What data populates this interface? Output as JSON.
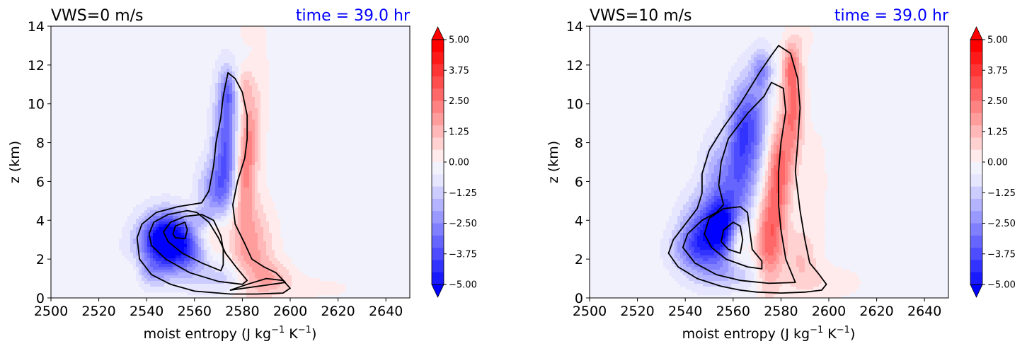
{
  "colors": {
    "background": "#f2f2fc",
    "time_text": "#0000ff",
    "contour": "#000000",
    "neg_strong": "#0000ff",
    "pos_strong": "#ff0000"
  },
  "chart_data": [
    {
      "type": "contourf",
      "title_left": "VWS=0 m/s",
      "title_right": "time = 39.0 hr",
      "xlabel": "moist entropy (J kg",
      "xlabel_sup1": "−1",
      "xlabel_mid": " K",
      "xlabel_sup2": "−1",
      "xlabel_end": ")",
      "ylabel": "z (km)",
      "xlim": [
        2500,
        2650
      ],
      "ylim": [
        0,
        14
      ],
      "xticks": [
        "2500",
        "2520",
        "2540",
        "2560",
        "2580",
        "2600",
        "2620",
        "2640"
      ],
      "xtick_values": [
        2500,
        2520,
        2540,
        2560,
        2580,
        2600,
        2620,
        2640
      ],
      "yticks": [
        "0",
        "2",
        "4",
        "6",
        "8",
        "10",
        "12",
        "14"
      ],
      "ytick_values": [
        0,
        2,
        4,
        6,
        8,
        10,
        12,
        14
      ],
      "colorbar": {
        "range": [
          -5,
          5
        ],
        "extend": "both",
        "ticks": [
          "5.00",
          "3.75",
          "2.50",
          "1.25",
          "0.00",
          "−1.25",
          "−2.50",
          "−3.75",
          "−5.00"
        ],
        "tick_values": [
          5,
          3.75,
          2.5,
          1.25,
          0,
          -1.25,
          -2.5,
          -3.75,
          -5
        ]
      },
      "blobs": [
        {
          "x": 2548,
          "y": 3.1,
          "sx": 7,
          "sy": 0.9,
          "v": -5.2
        },
        {
          "x": 2558,
          "y": 2.4,
          "sx": 12,
          "sy": 0.9,
          "v": -2.8
        },
        {
          "x": 2576,
          "y": 1.0,
          "sx": 10,
          "sy": 0.6,
          "v": -1.5
        },
        {
          "x": 2568,
          "y": 5.2,
          "sx": 4.5,
          "sy": 1.2,
          "v": -2.5
        },
        {
          "x": 2573,
          "y": 7.8,
          "sx": 3.5,
          "sy": 2.2,
          "v": -3.2
        },
        {
          "x": 2574,
          "y": 10.6,
          "sx": 2.2,
          "sy": 0.8,
          "v": -1.8
        },
        {
          "x": 2542,
          "y": 1.3,
          "sx": 5,
          "sy": 0.5,
          "v": -1.2
        },
        {
          "x": 2564,
          "y": 4.1,
          "sx": 3,
          "sy": 0.4,
          "v": -1.5
        },
        {
          "x": 2567,
          "y": 3.1,
          "sx": 5,
          "sy": 1.2,
          "v": 2.6
        },
        {
          "x": 2582,
          "y": 2.4,
          "sx": 7,
          "sy": 1.7,
          "v": 2.4
        },
        {
          "x": 2591,
          "y": 1.0,
          "sx": 7,
          "sy": 0.6,
          "v": 1.6
        },
        {
          "x": 2581,
          "y": 6.3,
          "sx": 3,
          "sy": 1.5,
          "v": 2.0
        },
        {
          "x": 2583,
          "y": 8.8,
          "sx": 2.8,
          "sy": 1.6,
          "v": 1.8
        },
        {
          "x": 2581,
          "y": 11.0,
          "sx": 2,
          "sy": 0.6,
          "v": 1.0
        },
        {
          "x": 2588,
          "y": 11.0,
          "sx": 2.5,
          "sy": 3.0,
          "v": 0.45
        },
        {
          "x": 2612,
          "y": 0.5,
          "sx": 14,
          "sy": 0.5,
          "v": 0.35
        },
        {
          "x": 2534,
          "y": 1.3,
          "sx": 3,
          "sy": 0.5,
          "v": 0.7
        },
        {
          "x": 2581,
          "y": 13.7,
          "sx": 3,
          "sy": 0.7,
          "v": 0.3
        }
      ],
      "contours": [
        [
          [
            2575,
            0.4
          ],
          [
            2582,
            0.7
          ],
          [
            2590,
            1.0
          ],
          [
            2597,
            0.9
          ],
          [
            2600,
            0.5
          ],
          [
            2597,
            0.25
          ],
          [
            2586,
            0.2
          ],
          [
            2575,
            0.2
          ],
          [
            2560,
            0.35
          ],
          [
            2550,
            0.7
          ],
          [
            2542,
            1.2
          ],
          [
            2537,
            2.0
          ],
          [
            2536,
            3.1
          ],
          [
            2538,
            3.8
          ],
          [
            2544,
            4.4
          ],
          [
            2553,
            4.7
          ],
          [
            2563,
            4.9
          ],
          [
            2566,
            5.5
          ],
          [
            2568,
            6.8
          ],
          [
            2569,
            8.0
          ],
          [
            2571,
            9.3
          ],
          [
            2572,
            10.4
          ],
          [
            2574,
            11.6
          ],
          [
            2577,
            11.3
          ],
          [
            2580,
            10.6
          ],
          [
            2582,
            9.4
          ],
          [
            2582,
            8.2
          ],
          [
            2581,
            7.2
          ],
          [
            2578,
            6.0
          ],
          [
            2576,
            4.8
          ],
          [
            2577,
            3.8
          ],
          [
            2581,
            2.8
          ],
          [
            2584,
            2.0
          ],
          [
            2589,
            1.6
          ],
          [
            2594,
            1.3
          ],
          [
            2598,
            0.8
          ]
        ],
        [
          [
            2580,
            0.7
          ],
          [
            2570,
            0.85
          ],
          [
            2558,
            1.3
          ],
          [
            2548,
            2.0
          ],
          [
            2542,
            2.7
          ],
          [
            2541,
            3.3
          ],
          [
            2543,
            3.9
          ],
          [
            2549,
            4.3
          ],
          [
            2557,
            4.5
          ],
          [
            2561,
            4.4
          ],
          [
            2566,
            3.9
          ],
          [
            2570,
            3.1
          ],
          [
            2573,
            2.3
          ],
          [
            2578,
            1.5
          ],
          [
            2582,
            0.9
          ]
        ],
        [
          [
            2571,
            1.4
          ],
          [
            2563,
            1.8
          ],
          [
            2555,
            2.3
          ],
          [
            2549,
            2.9
          ],
          [
            2547,
            3.4
          ],
          [
            2550,
            3.9
          ],
          [
            2556,
            4.2
          ],
          [
            2563,
            4.3
          ],
          [
            2568,
            4.0
          ],
          [
            2571,
            3.2
          ],
          [
            2572,
            2.5
          ],
          [
            2572,
            1.7
          ]
        ],
        [
          [
            2552,
            3.1
          ],
          [
            2556,
            3.05
          ],
          [
            2557,
            3.5
          ],
          [
            2556,
            3.9
          ],
          [
            2552,
            3.7
          ],
          [
            2551,
            3.3
          ]
        ]
      ]
    },
    {
      "type": "contourf",
      "title_left": "VWS=10 m/s",
      "title_right": "time = 39.0 hr",
      "xlabel": "moist entropy (J kg",
      "xlabel_sup1": "−1",
      "xlabel_mid": " K",
      "xlabel_sup2": "−1",
      "xlabel_end": ")",
      "ylabel": "z (km)",
      "xlim": [
        2500,
        2650
      ],
      "ylim": [
        0,
        14
      ],
      "xticks": [
        "2500",
        "2520",
        "2540",
        "2560",
        "2580",
        "2600",
        "2620",
        "2640"
      ],
      "xtick_values": [
        2500,
        2520,
        2540,
        2560,
        2580,
        2600,
        2620,
        2640
      ],
      "yticks": [
        "0",
        "2",
        "4",
        "6",
        "8",
        "10",
        "12",
        "14"
      ],
      "ytick_values": [
        0,
        2,
        4,
        6,
        8,
        10,
        12,
        14
      ],
      "colorbar": {
        "range": [
          -5,
          5
        ],
        "extend": "both",
        "ticks": [
          "5.00",
          "3.75",
          "2.50",
          "1.25",
          "0.00",
          "−1.25",
          "−2.50",
          "−3.75",
          "−5.00"
        ],
        "tick_values": [
          5,
          3.75,
          2.5,
          1.25,
          0,
          -1.25,
          -2.5,
          -3.75,
          -5
        ]
      },
      "blobs": [
        {
          "x": 2550,
          "y": 3.3,
          "sx": 7,
          "sy": 1.3,
          "v": -4.0
        },
        {
          "x": 2556,
          "y": 3.8,
          "sx": 4,
          "sy": 1.0,
          "v": -2.5
        },
        {
          "x": 2562,
          "y": 6.0,
          "sx": 6,
          "sy": 1.7,
          "v": -2.5
        },
        {
          "x": 2567,
          "y": 9.0,
          "sx": 5,
          "sy": 1.6,
          "v": -3.0
        },
        {
          "x": 2572,
          "y": 11.7,
          "sx": 3,
          "sy": 0.8,
          "v": -2.0
        },
        {
          "x": 2542,
          "y": 2.5,
          "sx": 6,
          "sy": 0.8,
          "v": -1.6
        },
        {
          "x": 2560,
          "y": 1.2,
          "sx": 9,
          "sy": 0.5,
          "v": -1.0
        },
        {
          "x": 2552,
          "y": 6.5,
          "sx": 4,
          "sy": 1.3,
          "v": -1.0
        },
        {
          "x": 2562,
          "y": 8.5,
          "sx": 3,
          "sy": 1.5,
          "v": -0.9
        },
        {
          "x": 2562,
          "y": 3.0,
          "sx": 3,
          "sy": 0.9,
          "v": 1.6
        },
        {
          "x": 2575,
          "y": 3.0,
          "sx": 4,
          "sy": 1.8,
          "v": 3.0
        },
        {
          "x": 2579,
          "y": 6.5,
          "sx": 3.5,
          "sy": 1.8,
          "v": 3.0
        },
        {
          "x": 2585,
          "y": 9.8,
          "sx": 3,
          "sy": 2.0,
          "v": 2.8
        },
        {
          "x": 2584,
          "y": 12.0,
          "sx": 2.5,
          "sy": 0.8,
          "v": 1.5
        },
        {
          "x": 2588,
          "y": 2.0,
          "sx": 5,
          "sy": 1.2,
          "v": 1.2
        },
        {
          "x": 2600,
          "y": 0.8,
          "sx": 10,
          "sy": 0.6,
          "v": 0.6
        },
        {
          "x": 2595,
          "y": 6.0,
          "sx": 4,
          "sy": 2.5,
          "v": 0.4
        },
        {
          "x": 2590,
          "y": 13.5,
          "sx": 3,
          "sy": 0.7,
          "v": 0.4
        }
      ],
      "contours": [
        [
          [
            2570,
            0.3
          ],
          [
            2580,
            0.25
          ],
          [
            2590,
            0.3
          ],
          [
            2597,
            0.4
          ],
          [
            2599,
            0.7
          ],
          [
            2596,
            1.2
          ],
          [
            2592,
            1.8
          ],
          [
            2590,
            3.0
          ],
          [
            2588,
            4.5
          ],
          [
            2586,
            6.5
          ],
          [
            2587,
            8.0
          ],
          [
            2588,
            9.8
          ],
          [
            2587,
            11.3
          ],
          [
            2584,
            12.6
          ],
          [
            2579,
            13.0
          ],
          [
            2576,
            12.5
          ],
          [
            2571,
            11.6
          ],
          [
            2563,
            10.0
          ],
          [
            2556,
            8.8
          ],
          [
            2550,
            7.6
          ],
          [
            2547,
            6.4
          ],
          [
            2547,
            5.4
          ],
          [
            2545,
            4.6
          ],
          [
            2540,
            3.8
          ],
          [
            2535,
            3.0
          ],
          [
            2533,
            2.3
          ],
          [
            2537,
            1.6
          ],
          [
            2545,
            1.0
          ],
          [
            2555,
            0.6
          ],
          [
            2563,
            0.4
          ]
        ],
        [
          [
            2586,
            0.8
          ],
          [
            2582,
            2.0
          ],
          [
            2580,
            3.5
          ],
          [
            2579,
            4.8
          ],
          [
            2579,
            6.5
          ],
          [
            2580,
            8.0
          ],
          [
            2582,
            9.6
          ],
          [
            2581,
            10.8
          ],
          [
            2576,
            11.1
          ],
          [
            2573,
            10.4
          ],
          [
            2566,
            9.5
          ],
          [
            2558,
            8.2
          ],
          [
            2555,
            7.0
          ],
          [
            2554,
            5.8
          ],
          [
            2556,
            4.8
          ],
          [
            2553,
            4.4
          ],
          [
            2547,
            4.0
          ],
          [
            2541,
            3.3
          ],
          [
            2539,
            2.6
          ],
          [
            2544,
            1.8
          ],
          [
            2553,
            1.2
          ],
          [
            2563,
            0.9
          ],
          [
            2575,
            0.75
          ]
        ],
        [
          [
            2572,
            1.5
          ],
          [
            2566,
            1.6
          ],
          [
            2557,
            2.0
          ],
          [
            2551,
            2.6
          ],
          [
            2548,
            3.3
          ],
          [
            2550,
            4.1
          ],
          [
            2556,
            4.6
          ],
          [
            2563,
            4.7
          ],
          [
            2566,
            4.4
          ],
          [
            2567,
            3.4
          ],
          [
            2568,
            2.5
          ],
          [
            2572,
            1.9
          ]
        ],
        [
          [
            2558,
            2.5
          ],
          [
            2563,
            2.3
          ],
          [
            2564,
            3.0
          ],
          [
            2563,
            3.7
          ],
          [
            2560,
            3.9
          ],
          [
            2556,
            3.5
          ],
          [
            2555,
            2.9
          ]
        ]
      ]
    }
  ]
}
